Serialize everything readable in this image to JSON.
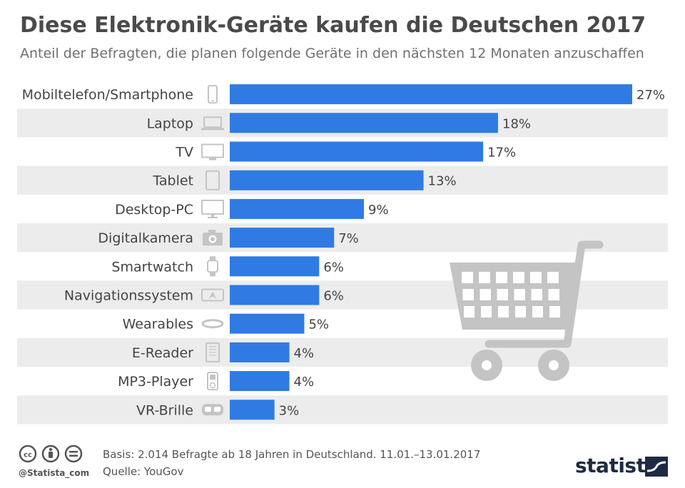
{
  "title": "Diese Elektronik-Geräte kaufen die Deutschen 2017",
  "subtitle": "Anteil der Befragten, die planen folgende Geräte in den nächsten 12 Monaten anzuschaffen",
  "chart_data": {
    "type": "bar",
    "orientation": "horizontal",
    "categories": [
      "Mobiltelefon/Smartphone",
      "Laptop",
      "TV",
      "Tablet",
      "Desktop-PC",
      "Digitalkamera",
      "Smartwatch",
      "Navigationssystem",
      "Wearables",
      "E-Reader",
      "MP3-Player",
      "VR-Brille"
    ],
    "icons": [
      "smartphone-icon",
      "laptop-icon",
      "tv-icon",
      "tablet-icon",
      "desktop-pc-icon",
      "camera-icon",
      "smartwatch-icon",
      "navigation-icon",
      "wearable-band-icon",
      "e-reader-icon",
      "mp3-player-icon",
      "vr-headset-icon"
    ],
    "values": [
      27,
      18,
      17,
      13,
      9,
      7,
      6,
      6,
      5,
      4,
      4,
      3
    ],
    "value_labels": [
      "27%",
      "18%",
      "17%",
      "13%",
      "9%",
      "7%",
      "6%",
      "6%",
      "5%",
      "4%",
      "4%",
      "3%"
    ],
    "unit": "%",
    "xlim": [
      0,
      27
    ],
    "bar_color": "#2f7be3",
    "stripe_color": "#ececec",
    "grid": false,
    "legend": "none"
  },
  "footer": {
    "basis": "Basis: 2.014 Befragte ab 18 Jahren in Deutschland. 11.01.–13.01.2017",
    "source": "Quelle: YouGov",
    "handle": "@Statista_com",
    "brand": "statista"
  },
  "decoration": {
    "icon": "shopping-cart-icon",
    "color": "#c4c4c4"
  }
}
